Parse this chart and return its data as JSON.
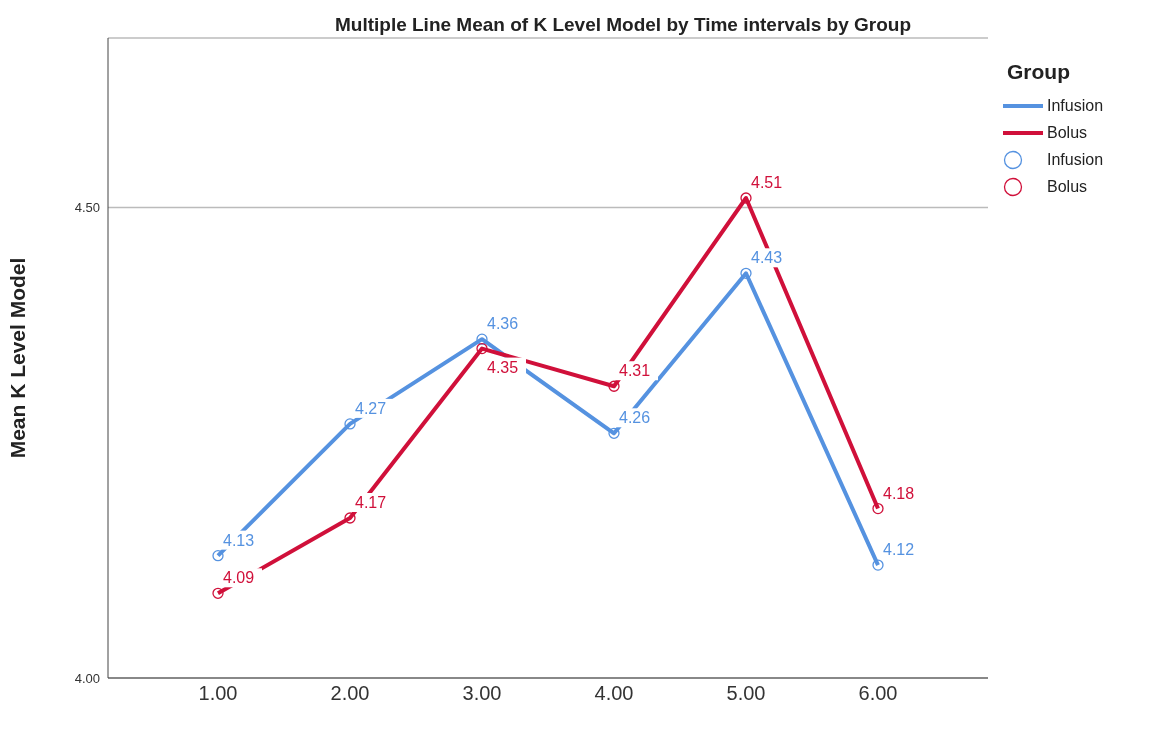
{
  "chart_data": {
    "type": "line",
    "title": "Multiple Line Mean of K Level Model by Time intervals by Group",
    "ylabel": "Mean K Level Model",
    "legend_title": "Group",
    "categories": [
      "1.00",
      "2.00",
      "3.00",
      "4.00",
      "5.00",
      "6.00"
    ],
    "series": [
      {
        "name": "Infusion",
        "color": "#5592e0",
        "values": [
          4.13,
          4.27,
          4.36,
          4.26,
          4.43,
          4.12
        ]
      },
      {
        "name": "Bolus",
        "color": "#d0103a",
        "values": [
          4.09,
          4.17,
          4.35,
          4.31,
          4.51,
          4.18
        ]
      }
    ],
    "ylim": [
      4.0,
      4.68
    ],
    "yticks": [
      {
        "value": 4.0,
        "label": "4.00"
      },
      {
        "value": 4.5,
        "label": "4.50"
      }
    ],
    "grid": "y",
    "legend": "top right",
    "marker": "circle",
    "line_style": "solid",
    "data_labels": true
  }
}
